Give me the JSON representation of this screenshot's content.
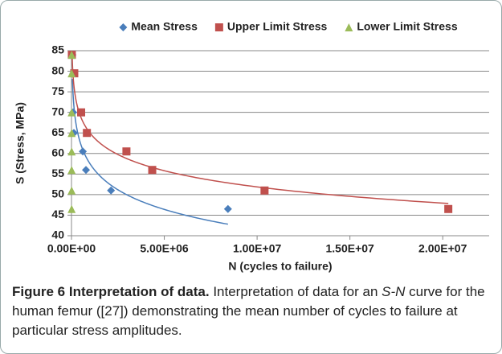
{
  "chart_data": {
    "type": "scatter",
    "xlabel": "N (cycles to failure)",
    "ylabel": "S (Stress, MPa)",
    "xlim": [
      0,
      22500000
    ],
    "ylim": [
      40,
      85
    ],
    "xticks": [
      {
        "value": 0,
        "label": "0.00E+00"
      },
      {
        "value": 5000000,
        "label": "5.00E+06"
      },
      {
        "value": 10000000,
        "label": "1.00E+07"
      },
      {
        "value": 15000000,
        "label": "1.50E+07"
      },
      {
        "value": 20000000,
        "label": "2.00E+07"
      }
    ],
    "yticks": [
      40,
      45,
      50,
      55,
      60,
      65,
      70,
      75,
      80,
      85
    ],
    "grid": true,
    "legend": "top",
    "series": [
      {
        "name": "Mean Stress",
        "color": "#4a7ebb",
        "marker": "diamond",
        "trendline": "logarithmic",
        "x": [
          50000,
          100000,
          87000,
          130000,
          610000,
          780000,
          2130000,
          8430000
        ],
        "values": [
          84,
          79.5,
          70,
          65,
          60.5,
          56,
          51,
          46.5
        ]
      },
      {
        "name": "Upper Limit Stress",
        "color": "#c0504d",
        "marker": "square",
        "trendline": "logarithmic",
        "x": [
          20000,
          150000,
          520000,
          830000,
          2960000,
          4350000,
          10400000,
          20300000
        ],
        "values": [
          84,
          79.5,
          70,
          65,
          60.5,
          56,
          51,
          46.5
        ]
      },
      {
        "name": "Lower Limit Stress",
        "color": "#9bbb59",
        "marker": "triangle",
        "x": [
          10000,
          10000,
          10000,
          10000,
          10000,
          10000,
          10000,
          10000
        ],
        "values": [
          84,
          79.5,
          70,
          65,
          60.5,
          56,
          51,
          46.5
        ]
      }
    ]
  },
  "caption": {
    "label": "Figure 6 Interpretation of data.",
    "text_before": " Interpretation of data for an ",
    "italic": "S-N",
    "text_after": " curve for the human femur ([27]) demonstrating the mean number of cycles to failure at particular stress amplitudes."
  }
}
